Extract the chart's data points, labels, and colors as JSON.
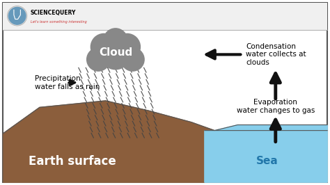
{
  "background_color": "#ffffff",
  "border_color": "#555555",
  "earth_color": "#8B5E3C",
  "sea_color": "#87CEEB",
  "cloud_color": "#888888",
  "cloud_text": "Cloud",
  "cloud_text_color": "#ffffff",
  "earth_text": "Earth surface",
  "earth_text_color": "#ffffff",
  "sea_text": "Sea",
  "sea_text_color": "#2277aa",
  "precip_label": "Precipitation\nwater falls as rain",
  "condensation_label": "Condensation\nwater collects at\nclouds",
  "evaporation_label": "Evaporation\nwater changes to gas",
  "header_title": "SCIENCEQUERY",
  "header_subtitle": "Let's learn something interesting",
  "header_title_color": "#000000",
  "header_subtitle_color": "#cc3333",
  "rain_color": "#444444",
  "arrow_color": "#111111",
  "label_fontsize": 7.5,
  "cloud_fontsize": 11,
  "earth_fontsize": 12,
  "sea_fontsize": 11
}
